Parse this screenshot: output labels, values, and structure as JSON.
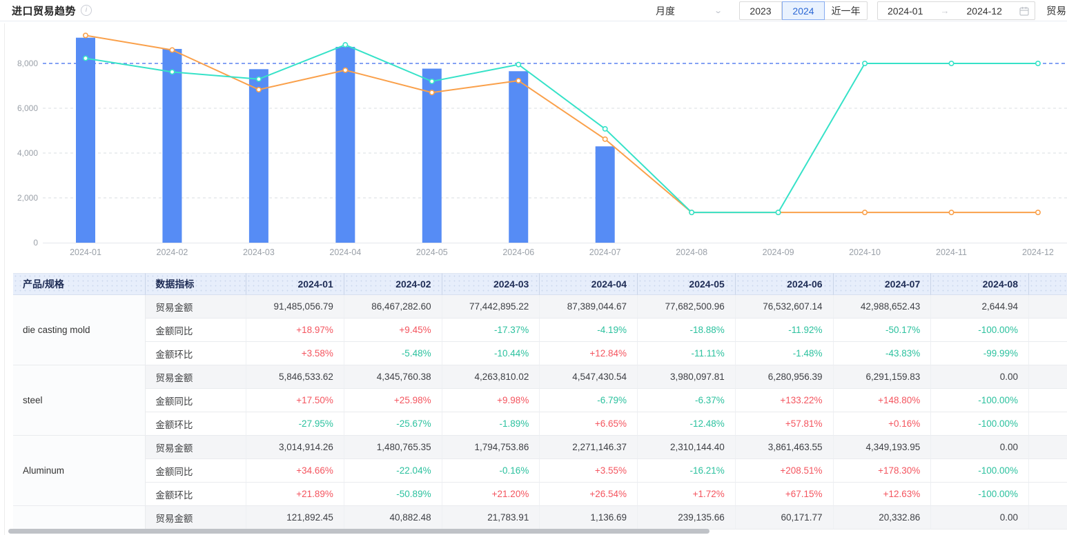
{
  "header": {
    "title": "进口贸易趋势",
    "controls": {
      "period_select": "月度",
      "year_2023": "2023",
      "year_2024": "2024",
      "selected_year": "2024",
      "recent_button": "近一年",
      "date_start": "2024-01",
      "date_end": "2024-12",
      "right_cut_label": "贸易"
    }
  },
  "chart_data": {
    "type": "bar+line combo",
    "categories": [
      "2024-01",
      "2024-02",
      "2024-03",
      "2024-04",
      "2024-05",
      "2024-06",
      "2024-07",
      "2024-08",
      "2024-09",
      "2024-10",
      "2024-11",
      "2024-12"
    ],
    "series": [
      {
        "name": "bars",
        "type": "bar",
        "color": "#568CF5",
        "values": [
          9148,
          8647,
          7744,
          8739,
          7768,
          7653,
          4299,
          0.26,
          null,
          null,
          null,
          null
        ]
      },
      {
        "name": "line-orange",
        "type": "line",
        "color": "#FAA04A",
        "values": [
          9250,
          8600,
          6830,
          7700,
          6700,
          7230,
          4620,
          1350,
          1350,
          1350,
          1350,
          1350
        ]
      },
      {
        "name": "line-teal",
        "type": "line",
        "color": "#36E2C8",
        "values": [
          8230,
          7620,
          7300,
          8830,
          7200,
          7950,
          5080,
          1350,
          1350,
          8000,
          8000,
          8000
        ]
      }
    ],
    "ylim": [
      0,
      9800
    ],
    "yticks": [
      0,
      2000,
      4000,
      6000,
      8000
    ],
    "reference_line": {
      "value": 8000,
      "color": "#5B82F0"
    },
    "grid": "dashed-horizontal",
    "legend": "none",
    "title": "进口贸易趋势"
  },
  "table": {
    "col_product": "产品/规格",
    "col_metric": "数据指标",
    "months": [
      "2024-01",
      "2024-02",
      "2024-03",
      "2024-04",
      "2024-05",
      "2024-06",
      "2024-07",
      "2024-08"
    ],
    "metric_labels": {
      "amount": "贸易金额",
      "yoy": "金额同比",
      "mom": "金额环比"
    },
    "groups": [
      {
        "product": "die casting mold",
        "amount": [
          "91,485,056.79",
          "86,467,282.60",
          "77,442,895.22",
          "87,389,044.67",
          "77,682,500.96",
          "76,532,607.14",
          "42,988,652.43",
          "2,644.94"
        ],
        "yoy": [
          "+18.97%",
          "+9.45%",
          "-17.37%",
          "-4.19%",
          "-18.88%",
          "-11.92%",
          "-50.17%",
          "-100.00%"
        ],
        "mom": [
          "+3.58%",
          "-5.48%",
          "-10.44%",
          "+12.84%",
          "-11.11%",
          "-1.48%",
          "-43.83%",
          "-99.99%"
        ]
      },
      {
        "product": "steel",
        "amount": [
          "5,846,533.62",
          "4,345,760.38",
          "4,263,810.02",
          "4,547,430.54",
          "3,980,097.81",
          "6,280,956.39",
          "6,291,159.83",
          "0.00"
        ],
        "yoy": [
          "+17.50%",
          "+25.98%",
          "+9.98%",
          "-6.79%",
          "-6.37%",
          "+133.22%",
          "+148.80%",
          "-100.00%"
        ],
        "mom": [
          "-27.95%",
          "-25.67%",
          "-1.89%",
          "+6.65%",
          "-12.48%",
          "+57.81%",
          "+0.16%",
          "-100.00%"
        ]
      },
      {
        "product": "Aluminum",
        "amount": [
          "3,014,914.26",
          "1,480,765.35",
          "1,794,753.86",
          "2,271,146.37",
          "2,310,144.40",
          "3,861,463.55",
          "4,349,193.95",
          "0.00"
        ],
        "yoy": [
          "+34.66%",
          "-22.04%",
          "-0.16%",
          "+3.55%",
          "-16.21%",
          "+208.51%",
          "+178.30%",
          "-100.00%"
        ],
        "mom": [
          "+21.89%",
          "-50.89%",
          "+21.20%",
          "+26.54%",
          "+1.72%",
          "+67.15%",
          "+12.63%",
          "-100.00%"
        ]
      },
      {
        "product": "",
        "amount": [
          "121,892.45",
          "40,882.48",
          "21,783.91",
          "1,136.69",
          "239,135.66",
          "60,171.77",
          "20,332.86",
          "0.00"
        ]
      }
    ]
  },
  "colors": {
    "bar": "#568CF5",
    "line_orange": "#FAA04A",
    "line_teal": "#36E2C8",
    "reference": "#5B82F0",
    "percent_up_red": "#F4545E",
    "percent_down_green": "#2BC19E",
    "header_bg": "#E7EEFB"
  }
}
